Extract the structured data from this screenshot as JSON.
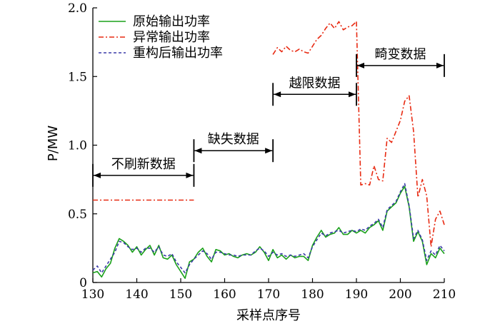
{
  "chart_data": {
    "type": "line",
    "xlabel": "采样点序号",
    "ylabel": "P/MW",
    "xlim": [
      130,
      210
    ],
    "ylim": [
      0,
      2.0
    ],
    "xticks": [
      "130",
      "140",
      "150",
      "160",
      "170",
      "180",
      "190",
      "200",
      "210"
    ],
    "yticks": [
      "0",
      "0.5",
      "1.0",
      "1.5",
      "2.0"
    ],
    "legend_position": "top-left",
    "series": [
      {
        "name": "原始输出功率",
        "color": "#1aa01a",
        "dash": "solid",
        "x": [
          130,
          131,
          132,
          133,
          134,
          135,
          136,
          137,
          138,
          139,
          140,
          141,
          142,
          143,
          144,
          145,
          146,
          147,
          148,
          149,
          150,
          151,
          152,
          153,
          154,
          155,
          156,
          157,
          158,
          159,
          160,
          161,
          162,
          163,
          164,
          165,
          166,
          167,
          168,
          169,
          170,
          171,
          172,
          173,
          174,
          175,
          176,
          177,
          178,
          179,
          180,
          181,
          182,
          183,
          184,
          185,
          186,
          187,
          188,
          189,
          190,
          191,
          192,
          193,
          194,
          195,
          196,
          197,
          198,
          199,
          200,
          201,
          202,
          203,
          204,
          205,
          206,
          207,
          208,
          209,
          210
        ],
        "y": [
          0.07,
          0.08,
          0.04,
          0.1,
          0.14,
          0.25,
          0.32,
          0.3,
          0.27,
          0.22,
          0.26,
          0.2,
          0.24,
          0.27,
          0.2,
          0.27,
          0.18,
          0.17,
          0.2,
          0.13,
          0.08,
          0.03,
          0.15,
          0.17,
          0.22,
          0.25,
          0.19,
          0.15,
          0.24,
          0.23,
          0.2,
          0.21,
          0.19,
          0.18,
          0.2,
          0.21,
          0.2,
          0.22,
          0.26,
          0.22,
          0.16,
          0.24,
          0.18,
          0.2,
          0.17,
          0.2,
          0.18,
          0.19,
          0.19,
          0.16,
          0.27,
          0.33,
          0.38,
          0.33,
          0.35,
          0.36,
          0.4,
          0.35,
          0.35,
          0.38,
          0.36,
          0.38,
          0.36,
          0.4,
          0.42,
          0.45,
          0.38,
          0.52,
          0.55,
          0.58,
          0.65,
          0.7,
          0.55,
          0.3,
          0.37,
          0.3,
          0.13,
          0.21,
          0.18,
          0.25,
          0.21
        ]
      },
      {
        "name": "异常输出功率",
        "color": "#e82a12",
        "dash": "7,3,2,3",
        "segments": [
          {
            "x": [
              130,
              153
            ],
            "y": [
              0.6,
              0.6
            ]
          },
          {
            "x": [
              171,
              172,
              173,
              174,
              175,
              176,
              177,
              178,
              179,
              180,
              181,
              182,
              183,
              184,
              185,
              186,
              187,
              188,
              189,
              190
            ],
            "y": [
              1.66,
              1.71,
              1.68,
              1.72,
              1.69,
              1.68,
              1.7,
              1.68,
              1.67,
              1.72,
              1.77,
              1.8,
              1.85,
              1.89,
              1.85,
              1.9,
              1.84,
              1.86,
              1.87,
              1.9
            ]
          },
          {
            "x": [
              190,
              191,
              192,
              193,
              194,
              195,
              196,
              197,
              198,
              199,
              200,
              201,
              202,
              203,
              204,
              205,
              206,
              207,
              208,
              209,
              210
            ],
            "y": [
              1.9,
              0.71,
              0.72,
              0.71,
              0.85,
              0.75,
              0.74,
              1.05,
              1.02,
              1.1,
              1.18,
              1.32,
              1.36,
              1.1,
              0.62,
              0.75,
              0.63,
              0.26,
              0.46,
              0.52,
              0.42
            ]
          }
        ]
      },
      {
        "name": "重构后输出功率",
        "color": "#3b3ba8",
        "dash": "4,3",
        "x": [
          130,
          131,
          132,
          133,
          134,
          135,
          136,
          137,
          138,
          139,
          140,
          141,
          142,
          143,
          144,
          145,
          146,
          147,
          148,
          149,
          150,
          151,
          152,
          153,
          154,
          155,
          156,
          157,
          158,
          159,
          160,
          161,
          162,
          163,
          164,
          165,
          166,
          167,
          168,
          169,
          170,
          171,
          172,
          173,
          174,
          175,
          176,
          177,
          178,
          179,
          180,
          181,
          182,
          183,
          184,
          185,
          186,
          187,
          188,
          189,
          190,
          191,
          192,
          193,
          194,
          195,
          196,
          197,
          198,
          199,
          200,
          201,
          202,
          203,
          204,
          205,
          206,
          207,
          208,
          209,
          210
        ],
        "y": [
          0.09,
          0.12,
          0.07,
          0.12,
          0.17,
          0.22,
          0.3,
          0.29,
          0.26,
          0.24,
          0.25,
          0.22,
          0.25,
          0.25,
          0.22,
          0.26,
          0.2,
          0.19,
          0.21,
          0.15,
          0.11,
          0.07,
          0.13,
          0.17,
          0.2,
          0.23,
          0.21,
          0.17,
          0.22,
          0.22,
          0.21,
          0.2,
          0.2,
          0.19,
          0.2,
          0.2,
          0.2,
          0.23,
          0.25,
          0.23,
          0.19,
          0.22,
          0.2,
          0.21,
          0.19,
          0.2,
          0.19,
          0.2,
          0.21,
          0.18,
          0.26,
          0.31,
          0.36,
          0.34,
          0.36,
          0.37,
          0.38,
          0.36,
          0.37,
          0.38,
          0.37,
          0.39,
          0.38,
          0.41,
          0.43,
          0.46,
          0.4,
          0.53,
          0.56,
          0.59,
          0.66,
          0.72,
          0.56,
          0.32,
          0.38,
          0.31,
          0.16,
          0.23,
          0.2,
          0.27,
          0.23
        ]
      }
    ],
    "annotations": [
      {
        "label": "不刷新数据",
        "x_start": 130,
        "x_end": 153,
        "y": 0.78
      },
      {
        "label": "缺失数据",
        "x_start": 153,
        "x_end": 171,
        "y": 0.96
      },
      {
        "label": "越限数据",
        "x_start": 171,
        "x_end": 190,
        "y": 1.37
      },
      {
        "label": "畸变数据",
        "x_start": 190,
        "x_end": 210,
        "y": 1.58
      }
    ]
  }
}
